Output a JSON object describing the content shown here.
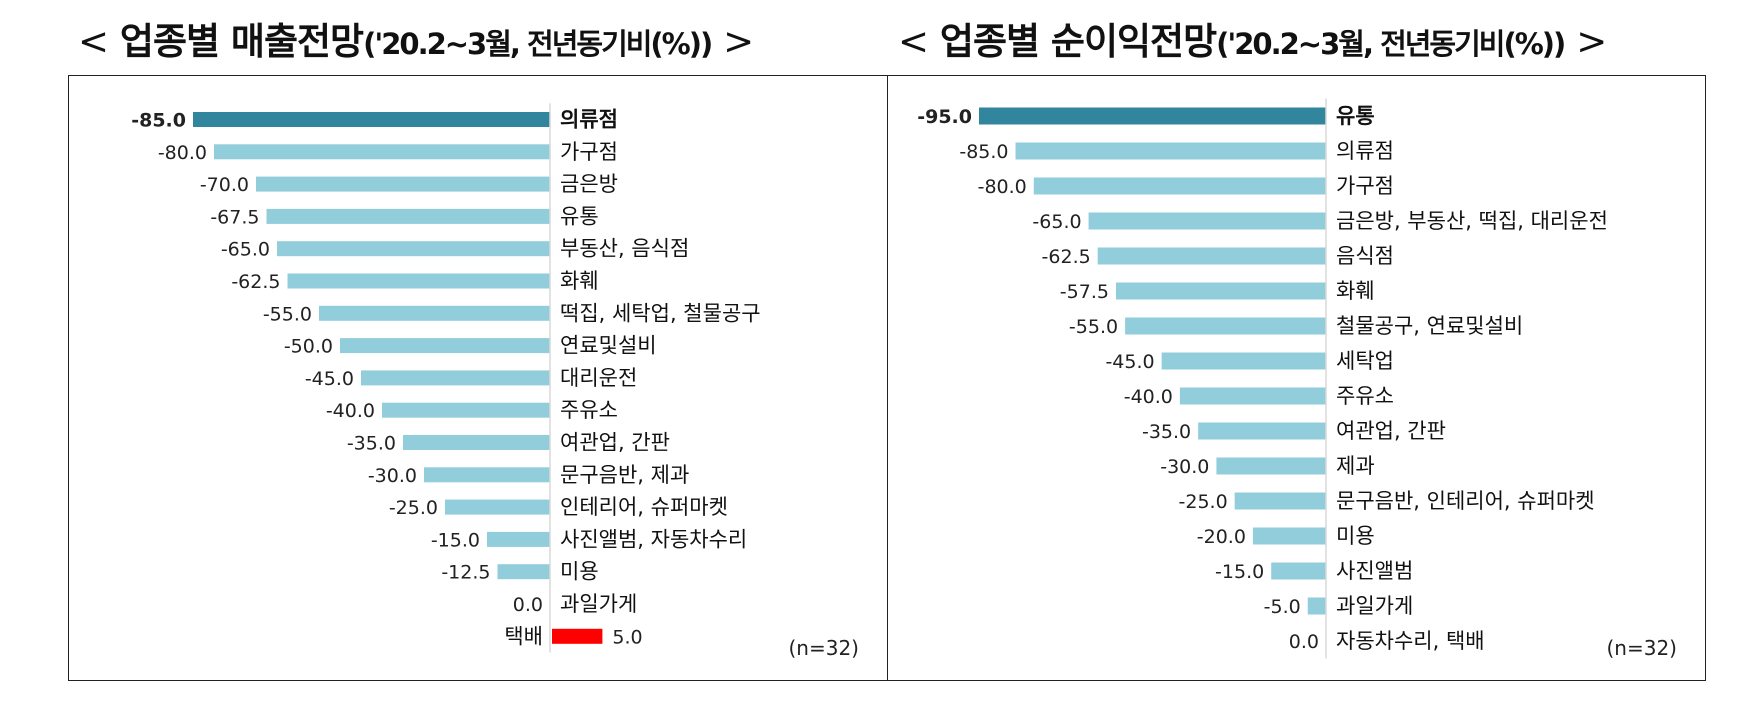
{
  "titles": {
    "left": {
      "open": "<",
      "main": "업종별 매출전망",
      "paren": "('20.2~3월, 전년동기비(%))",
      "close": ">"
    },
    "right": {
      "open": "<",
      "main": "업종별 순이익전망",
      "paren": "('20.2~3월, 전년동기비(%))",
      "close": ">"
    }
  },
  "chart_data": [
    {
      "type": "bar",
      "orientation": "horizontal",
      "title": "업종별 매출전망('20.2~3월, 전년동기비(%))",
      "note": "(n=32)",
      "categories": [
        "의류점",
        "가구점",
        "금은방",
        "유통",
        "부동산, 음식점",
        "화훼",
        "떡집, 세탁업, 철물공구",
        "연료및설비",
        "대리운전",
        "주유소",
        "여관업, 간판",
        "문구음반, 제과",
        "인테리어, 슈퍼마켓",
        "사진앨범, 자동차수리",
        "미용",
        "과일가게",
        "택배"
      ],
      "values": [
        -85.0,
        -80.0,
        -70.0,
        -67.5,
        -65.0,
        -62.5,
        -55.0,
        -50.0,
        -45.0,
        -40.0,
        -35.0,
        -30.0,
        -25.0,
        -15.0,
        -12.5,
        0.0,
        5.0
      ],
      "value_labels": [
        "-85.0",
        "-80.0",
        "-70.0",
        "-67.5",
        "-65.0",
        "-62.5",
        "-55.0",
        "-50.0",
        "-45.0",
        "-40.0",
        "-35.0",
        "-30.0",
        "-25.0",
        "-15.0",
        "-12.5",
        "0.0",
        "5.0"
      ],
      "highlight_index": 0,
      "xlim": [
        -85,
        5
      ],
      "colors": {
        "bar": "#92cddc",
        "highlight": "#31859c",
        "positive": "#ff0000"
      }
    },
    {
      "type": "bar",
      "orientation": "horizontal",
      "title": "업종별 순이익전망('20.2~3월, 전년동기비(%))",
      "note": "(n=32)",
      "categories": [
        "유통",
        "의류점",
        "가구점",
        "금은방, 부동산, 떡집, 대리운전",
        "음식점",
        "화훼",
        "철물공구, 연료및설비",
        "세탁업",
        "주유소",
        "여관업, 간판",
        "제과",
        "문구음반, 인테리어, 슈퍼마켓",
        "미용",
        "사진앨범",
        "과일가게",
        "자동차수리, 택배"
      ],
      "values": [
        -95.0,
        -85.0,
        -80.0,
        -65.0,
        -62.5,
        -57.5,
        -55.0,
        -45.0,
        -40.0,
        -35.0,
        -30.0,
        -25.0,
        -20.0,
        -15.0,
        -5.0,
        0.0
      ],
      "value_labels": [
        "-95.0",
        "-85.0",
        "-80.0",
        "-65.0",
        "-62.5",
        "-57.5",
        "-55.0",
        "-45.0",
        "-40.0",
        "-35.0",
        "-30.0",
        "-25.0",
        "-20.0",
        "-15.0",
        "-5.0",
        "0.0"
      ],
      "highlight_index": 0,
      "xlim": [
        -95,
        0
      ],
      "colors": {
        "bar": "#92cddc",
        "highlight": "#31859c",
        "positive": "#ff0000"
      }
    }
  ]
}
